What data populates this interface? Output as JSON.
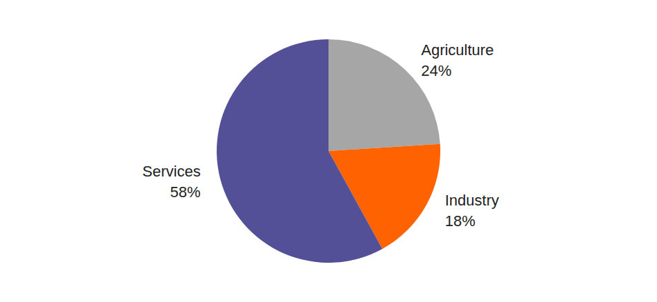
{
  "chart_data": {
    "type": "pie",
    "categories": [
      "Agriculture",
      "Industry",
      "Services"
    ],
    "values": [
      24,
      18,
      58
    ],
    "value_labels": [
      "24%",
      "18%",
      "58%"
    ],
    "colors": [
      "#a6a6a6",
      "#ff6200",
      "#545097"
    ],
    "data_labels": true
  }
}
